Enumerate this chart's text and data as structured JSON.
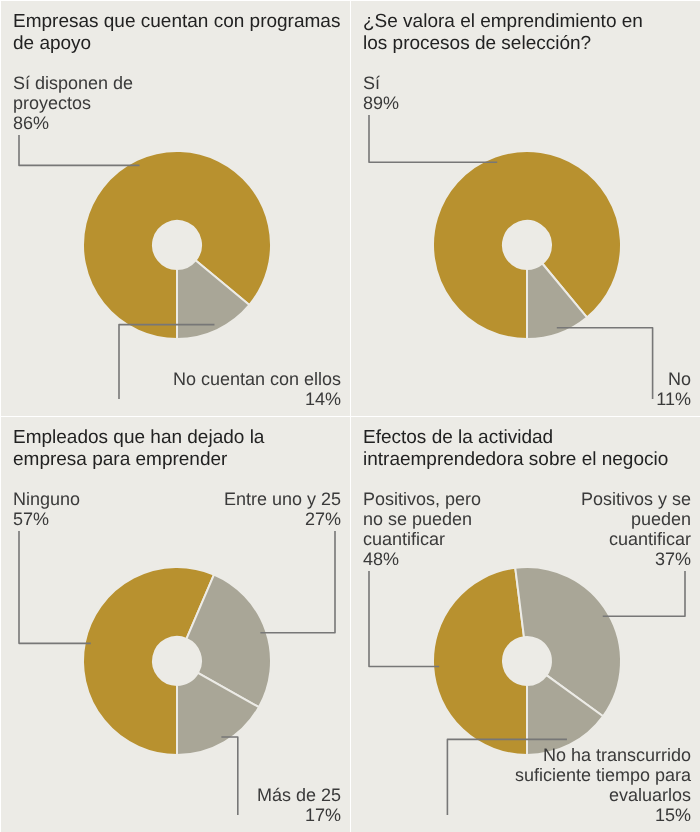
{
  "chart_data": [
    {
      "type": "donut",
      "title": "Empresas que cuentan con programas de apoyo",
      "categories": [
        "Sí disponen de proyectos",
        "No cuentan con ellos"
      ],
      "values": [
        86,
        14
      ],
      "colors": [
        "#b8912f",
        "#a9a697"
      ],
      "value_labels": [
        "86%",
        "14%"
      ]
    },
    {
      "type": "donut",
      "title": "¿Se valora el emprendimiento en los procesos de selección?",
      "categories": [
        "Sí",
        "No"
      ],
      "values": [
        89,
        11
      ],
      "colors": [
        "#b8912f",
        "#a9a697"
      ],
      "value_labels": [
        "89%",
        "11%"
      ]
    },
    {
      "type": "donut",
      "title": "Empleados que han dejado la empresa para emprender",
      "categories": [
        "Ninguno",
        "Entre uno y 25",
        "Más de 25"
      ],
      "values": [
        57,
        27,
        17
      ],
      "colors": [
        "#b8912f",
        "#a9a697",
        "#a9a697"
      ],
      "value_labels": [
        "57%",
        "27%",
        "17%"
      ]
    },
    {
      "type": "donut",
      "title": "Efectos de la actividad intraemprendedora sobre el negocio",
      "categories": [
        "Positivos, pero no se pueden cuantificar",
        "Positivos y se pueden cuantificar",
        "No ha transcurrido suficiente tiempo para evaluarlos"
      ],
      "values": [
        48,
        37,
        15
      ],
      "colors": [
        "#b8912f",
        "#a9a697",
        "#a9a697"
      ],
      "value_labels": [
        "48%",
        "37%",
        "15%"
      ]
    }
  ]
}
